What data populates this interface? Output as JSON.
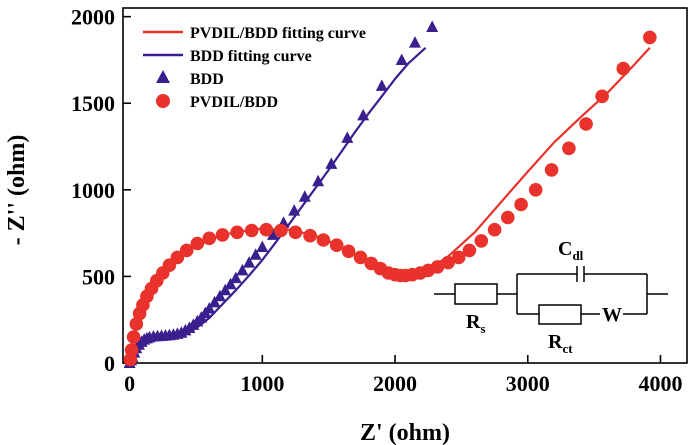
{
  "chart_data": {
    "type": "scatter",
    "xlabel": "Z' (ohm)",
    "ylabel": "- Z'' (ohm)",
    "xlim": [
      -50,
      4200
    ],
    "ylim": [
      0,
      2050
    ],
    "xticks": [
      0,
      1000,
      2000,
      3000,
      4000
    ],
    "yticks": [
      0,
      500,
      1000,
      1500,
      2000
    ],
    "grid": false,
    "legend_position": "top-left",
    "series": [
      {
        "name": "PVDIL/BDD fitting curve",
        "kind": "line",
        "color": "#e8322b",
        "x": [
          5,
          30,
          100,
          200,
          350,
          500,
          700,
          950,
          1200,
          1400,
          1600,
          1800,
          2000,
          2100,
          2250,
          2400,
          2600,
          2800,
          3000,
          3200,
          3400,
          3600,
          3800,
          3920
        ],
        "y": [
          10,
          130,
          330,
          470,
          595,
          675,
          740,
          775,
          770,
          735,
          670,
          585,
          515,
          510,
          540,
          615,
          755,
          930,
          1105,
          1275,
          1420,
          1560,
          1720,
          1820
        ]
      },
      {
        "name": "BDD fitting curve",
        "kind": "line",
        "color": "#3a1f8f",
        "x": [
          0,
          50,
          100,
          150,
          200,
          300,
          400,
          500,
          600,
          700,
          800,
          900,
          1000,
          1100,
          1200,
          1300,
          1400,
          1500,
          1600,
          1700,
          1800,
          1900,
          2000,
          2100,
          2230
        ],
        "y": [
          0,
          60,
          115,
          140,
          150,
          155,
          165,
          200,
          260,
          340,
          420,
          505,
          595,
          695,
          800,
          905,
          1010,
          1115,
          1225,
          1335,
          1440,
          1540,
          1640,
          1730,
          1820
        ]
      },
      {
        "name": "BDD",
        "kind": "scatter",
        "marker": "triangle",
        "color": "#3a1f8f",
        "x": [
          0,
          10,
          20,
          35,
          50,
          70,
          90,
          110,
          130,
          150,
          180,
          210,
          240,
          270,
          300,
          330,
          360,
          390,
          420,
          450,
          480,
          510,
          540,
          570,
          600,
          640,
          680,
          720,
          760,
          800,
          850,
          900,
          950,
          1000,
          1080,
          1160,
          1240,
          1320,
          1420,
          1520,
          1640,
          1760,
          1900,
          2050,
          2150,
          2280
        ],
        "y": [
          0,
          15,
          35,
          60,
          85,
          105,
          122,
          135,
          142,
          148,
          153,
          155,
          156,
          158,
          160,
          163,
          168,
          175,
          188,
          202,
          220,
          240,
          262,
          288,
          315,
          350,
          385,
          420,
          455,
          490,
          535,
          580,
          625,
          670,
          740,
          810,
          880,
          960,
          1050,
          1150,
          1300,
          1430,
          1600,
          1750,
          1850,
          1940
        ]
      },
      {
        "name": "PVDIL/BDD",
        "kind": "scatter",
        "marker": "circle",
        "color": "#e8322b",
        "x": [
          5,
          15,
          30,
          50,
          75,
          100,
          130,
          165,
          205,
          250,
          300,
          360,
          430,
          510,
          600,
          700,
          810,
          920,
          1030,
          1140,
          1250,
          1360,
          1460,
          1560,
          1650,
          1740,
          1820,
          1890,
          1950,
          2000,
          2040,
          2080,
          2130,
          2190,
          2250,
          2320,
          2400,
          2480,
          2560,
          2650,
          2750,
          2850,
          2950,
          3060,
          3180,
          3310,
          3440,
          3560,
          3720,
          3920
        ],
        "y": [
          20,
          75,
          150,
          225,
          285,
          335,
          385,
          430,
          475,
          520,
          565,
          610,
          650,
          690,
          720,
          740,
          755,
          765,
          770,
          765,
          755,
          735,
          710,
          680,
          645,
          610,
          575,
          545,
          520,
          510,
          505,
          505,
          510,
          520,
          535,
          555,
          580,
          610,
          650,
          705,
          770,
          840,
          915,
          1000,
          1115,
          1240,
          1380,
          1540,
          1700,
          1880
        ]
      }
    ]
  },
  "circuit": {
    "title": "equivalent-circuit",
    "rs_main": "R",
    "rs_sub": "s",
    "cdl_main": "C",
    "cdl_sub": "dl",
    "rct_main": "R",
    "rct_sub": "ct",
    "w_label": "W"
  }
}
